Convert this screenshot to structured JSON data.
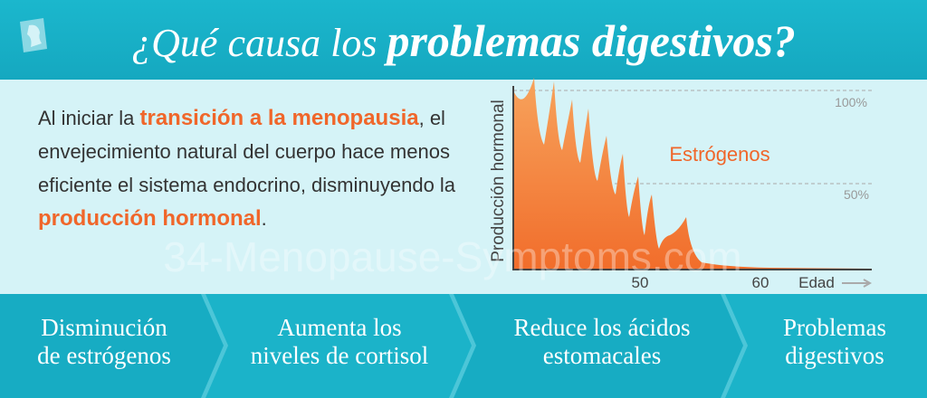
{
  "header": {
    "title_light": "¿Qué causa los",
    "title_bold": "problemas digestivos?"
  },
  "body": {
    "segments": [
      {
        "text": "Al iniciar la ",
        "emphasis": false
      },
      {
        "text": "transición a la menopausia",
        "emphasis": true
      },
      {
        "text": ", el envejecimiento natural del cuerpo hace menos eficiente el sistema endocrino, disminuyendo la ",
        "emphasis": false
      },
      {
        "text": "producción hormonal",
        "emphasis": true
      },
      {
        "text": ".",
        "emphasis": false
      }
    ]
  },
  "illustration": {
    "y_label": "Producción hormonal",
    "x_label": "Edad",
    "curve_label": "Estrógenos",
    "y_ticks": [
      "100%",
      "50%"
    ],
    "x_ticks": [
      "50",
      "60"
    ]
  },
  "watermark": "34-Menopause-Symptoms.com",
  "steps": [
    {
      "lines": [
        "Disminución",
        "de estrógenos"
      ]
    },
    {
      "lines": [
        "Aumenta los",
        "niveles de cortisol"
      ]
    },
    {
      "lines": [
        "Reduce los ácidos",
        "estomacales"
      ]
    },
    {
      "lines": [
        "Problemas",
        "digestivos"
      ]
    }
  ]
}
